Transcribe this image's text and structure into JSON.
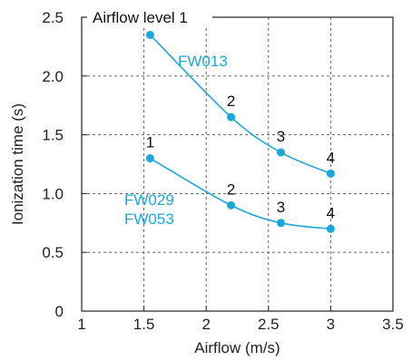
{
  "chart_data": {
    "type": "line",
    "title": "Airflow level 1",
    "xlabel": "Airflow (m/s)",
    "ylabel": "Ionization time (s)",
    "xlim": [
      1,
      3.5
    ],
    "ylim": [
      0,
      2.5
    ],
    "x_ticks": [
      "1",
      "1.5",
      "2",
      "2.5",
      "3",
      "3.5"
    ],
    "y_ticks": [
      "0",
      "0.5",
      "1.0",
      "1.5",
      "2.0",
      "2.5"
    ],
    "grid": true,
    "color": "#1aa7dc",
    "series": [
      {
        "name": "FW013",
        "x": [
          1.55,
          2.2,
          2.6,
          3.0
        ],
        "y": [
          2.35,
          1.65,
          1.35,
          1.17
        ],
        "point_labels": [
          "",
          "2",
          "3",
          "4"
        ]
      },
      {
        "name": "FW029\nFW053",
        "x": [
          1.55,
          2.2,
          2.6,
          3.0
        ],
        "y": [
          1.3,
          0.9,
          0.75,
          0.7
        ],
        "point_labels": [
          "1",
          "2",
          "3",
          "4"
        ]
      }
    ]
  }
}
